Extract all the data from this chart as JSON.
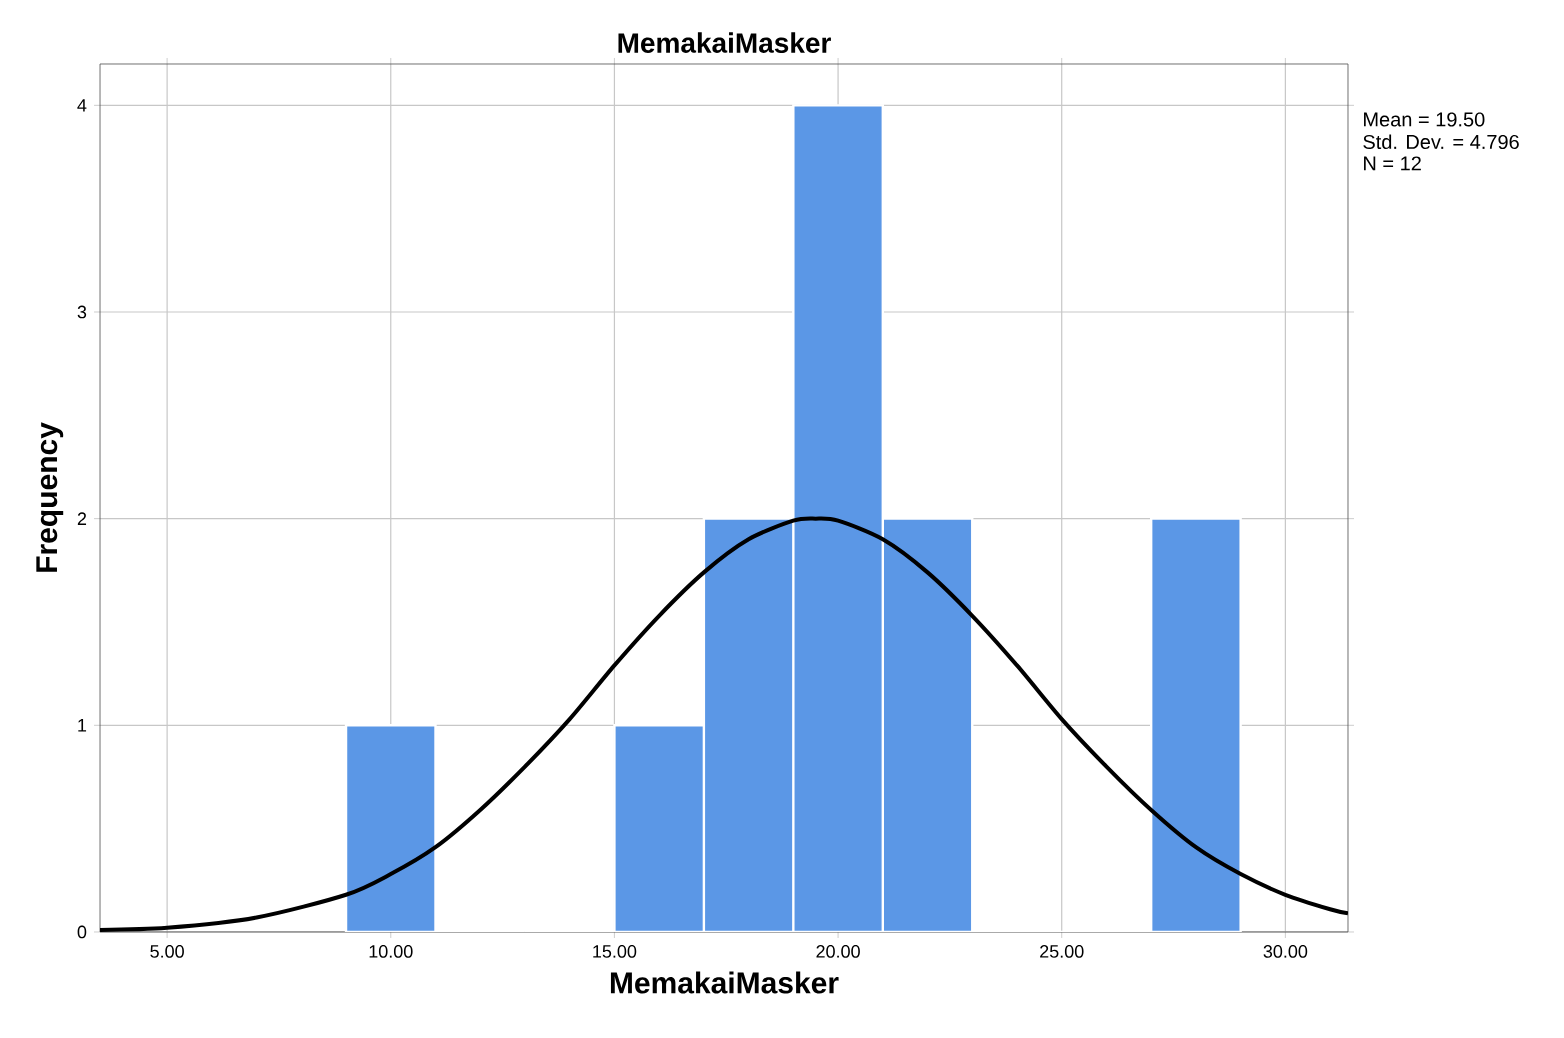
{
  "chart_data": {
    "type": "histogram",
    "title": "MemakaiMasker",
    "xlabel": "MemakaiMasker",
    "ylabel": "Frequency",
    "bins": [
      9,
      11,
      13,
      15,
      17,
      19,
      21,
      23,
      25,
      27,
      29
    ],
    "values": [
      1,
      0,
      0,
      1,
      2,
      4,
      2,
      0,
      0,
      2
    ],
    "color": "#5b97e6",
    "series": [
      {
        "type": "line",
        "color": "#000000",
        "x": [
          3.5,
          5,
          7,
          9,
          10,
          11,
          12,
          13,
          14,
          15,
          16,
          17,
          18,
          19,
          19.5,
          20,
          21,
          22,
          23,
          24,
          25,
          26,
          27,
          28,
          29,
          30,
          31,
          31.4
        ],
        "values": [
          0.01,
          0.02,
          0.07,
          0.18,
          0.28,
          0.41,
          0.59,
          0.8,
          1.03,
          1.29,
          1.53,
          1.74,
          1.9,
          1.99,
          2.0,
          1.99,
          1.9,
          1.74,
          1.53,
          1.29,
          1.03,
          0.8,
          0.59,
          0.41,
          0.28,
          0.18,
          0.11,
          0.09
        ]
      }
    ],
    "xlim": [
      3.5,
      31.4
    ],
    "ylim": [
      0,
      4.2
    ],
    "xticks": [
      {
        "value": 5,
        "label": "5.00"
      },
      {
        "value": 10,
        "label": "10.00"
      },
      {
        "value": 15,
        "label": "15.00"
      },
      {
        "value": 20,
        "label": "20.00"
      },
      {
        "value": 25,
        "label": "25.00"
      },
      {
        "value": 30,
        "label": "30.00"
      }
    ],
    "yticks": [
      0,
      1,
      2,
      3,
      4
    ],
    "grid": true,
    "marker": "none",
    "line_style": "solid",
    "annotations": [
      "Mean = 19.50",
      "Std. Dev. = 4.796",
      "N = 12"
    ]
  }
}
